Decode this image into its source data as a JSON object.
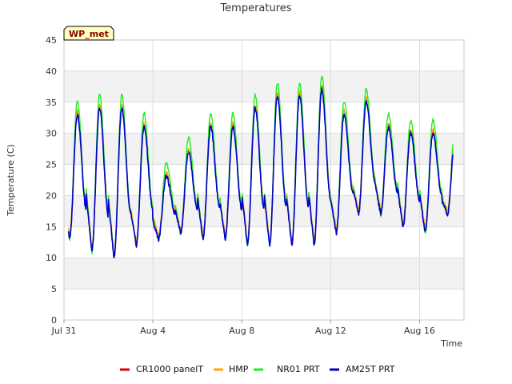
{
  "chart_data": {
    "type": "line",
    "title": "Temperatures",
    "xlabel": "Time",
    "ylabel": "Temperature (C)",
    "badge": "WP_met",
    "ylim": [
      0,
      45
    ],
    "yticks": [
      0,
      5,
      10,
      15,
      20,
      25,
      30,
      35,
      40,
      45
    ],
    "xlim_days": [
      0,
      18
    ],
    "xticks": [
      {
        "day": 0,
        "label": "Jul 31"
      },
      {
        "day": 4,
        "label": "Aug 4"
      },
      {
        "day": 8,
        "label": "Aug 8"
      },
      {
        "day": 12,
        "label": "Aug 12"
      },
      {
        "day": 16,
        "label": "Aug 16"
      }
    ],
    "grid": true,
    "legend_position": "bottom",
    "daily_min_max_base": [
      [
        13,
        33
      ],
      [
        11,
        34
      ],
      [
        10,
        34
      ],
      [
        12,
        31
      ],
      [
        13,
        23
      ],
      [
        14,
        27
      ],
      [
        13,
        31
      ],
      [
        13,
        31
      ],
      [
        12,
        34
      ],
      [
        12,
        36
      ],
      [
        12,
        36
      ],
      [
        12,
        37
      ],
      [
        14,
        33
      ],
      [
        17,
        35
      ],
      [
        17,
        31
      ],
      [
        15,
        30
      ],
      [
        14,
        30
      ],
      [
        17,
        29
      ]
    ],
    "series": [
      {
        "name": "CR1000 panelT",
        "color": "#dd0000",
        "peak_offset": 0.3,
        "min_offset": 0.3
      },
      {
        "name": "HMP",
        "color": "#ffa500",
        "peak_offset": 0.6,
        "min_offset": 1.2
      },
      {
        "name": "NR01 PRT",
        "color": "#22ee22",
        "peak_offset": 2.2,
        "min_offset": -0.3
      },
      {
        "name": "AM25T PRT",
        "color": "#0000cc",
        "peak_offset": 0.0,
        "min_offset": 0.0
      }
    ]
  }
}
